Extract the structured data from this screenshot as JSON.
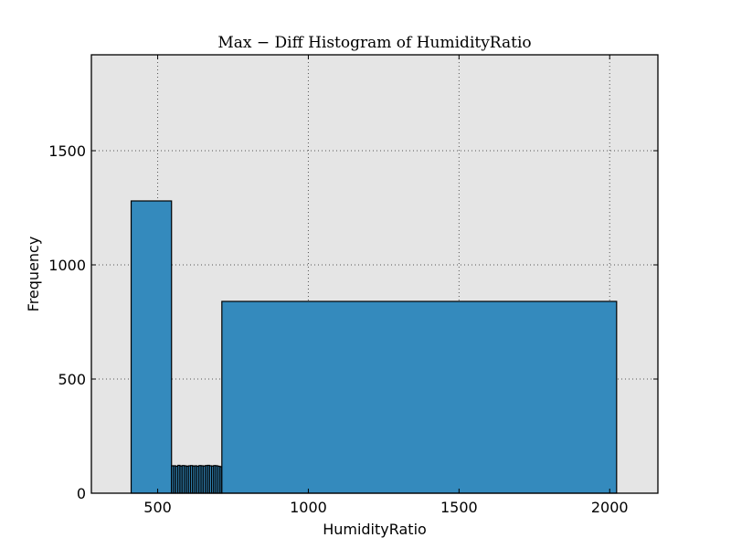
{
  "chart_data": {
    "type": "bar",
    "title": "Max − Diff Histogram of HumidityRatio",
    "xlabel": "HumidityRatio",
    "ylabel": "Frequency",
    "xlim": [
      280,
      2160
    ],
    "ylim": [
      0,
      1920
    ],
    "grid": true,
    "xticks": [
      500,
      1000,
      1500,
      2000
    ],
    "yticks": [
      0,
      500,
      1000,
      1500
    ],
    "bins": [
      {
        "x0": 412,
        "x1": 546,
        "value": 1280
      },
      {
        "x0": 546,
        "x1": 553,
        "value": 120
      },
      {
        "x0": 553,
        "x1": 560,
        "value": 120
      },
      {
        "x0": 560,
        "x1": 567,
        "value": 118
      },
      {
        "x0": 567,
        "x1": 574,
        "value": 122
      },
      {
        "x0": 574,
        "x1": 581,
        "value": 119
      },
      {
        "x0": 581,
        "x1": 588,
        "value": 121
      },
      {
        "x0": 588,
        "x1": 595,
        "value": 120
      },
      {
        "x0": 595,
        "x1": 602,
        "value": 118
      },
      {
        "x0": 602,
        "x1": 609,
        "value": 120
      },
      {
        "x0": 609,
        "x1": 616,
        "value": 121
      },
      {
        "x0": 616,
        "x1": 623,
        "value": 119
      },
      {
        "x0": 623,
        "x1": 630,
        "value": 120
      },
      {
        "x0": 630,
        "x1": 637,
        "value": 118
      },
      {
        "x0": 637,
        "x1": 644,
        "value": 121
      },
      {
        "x0": 644,
        "x1": 651,
        "value": 120
      },
      {
        "x0": 651,
        "x1": 658,
        "value": 119
      },
      {
        "x0": 658,
        "x1": 665,
        "value": 121
      },
      {
        "x0": 665,
        "x1": 672,
        "value": 122
      },
      {
        "x0": 672,
        "x1": 679,
        "value": 120
      },
      {
        "x0": 679,
        "x1": 686,
        "value": 119
      },
      {
        "x0": 686,
        "x1": 693,
        "value": 121
      },
      {
        "x0": 693,
        "x1": 700,
        "value": 120
      },
      {
        "x0": 700,
        "x1": 707,
        "value": 118
      },
      {
        "x0": 707,
        "x1": 713,
        "value": 116
      },
      {
        "x0": 713,
        "x1": 2023,
        "value": 840
      }
    ],
    "colors": {
      "bar_fill": "#348abd",
      "bar_edge": "#000000",
      "plot_bg": "#e5e5e5",
      "grid": "#555555"
    }
  }
}
